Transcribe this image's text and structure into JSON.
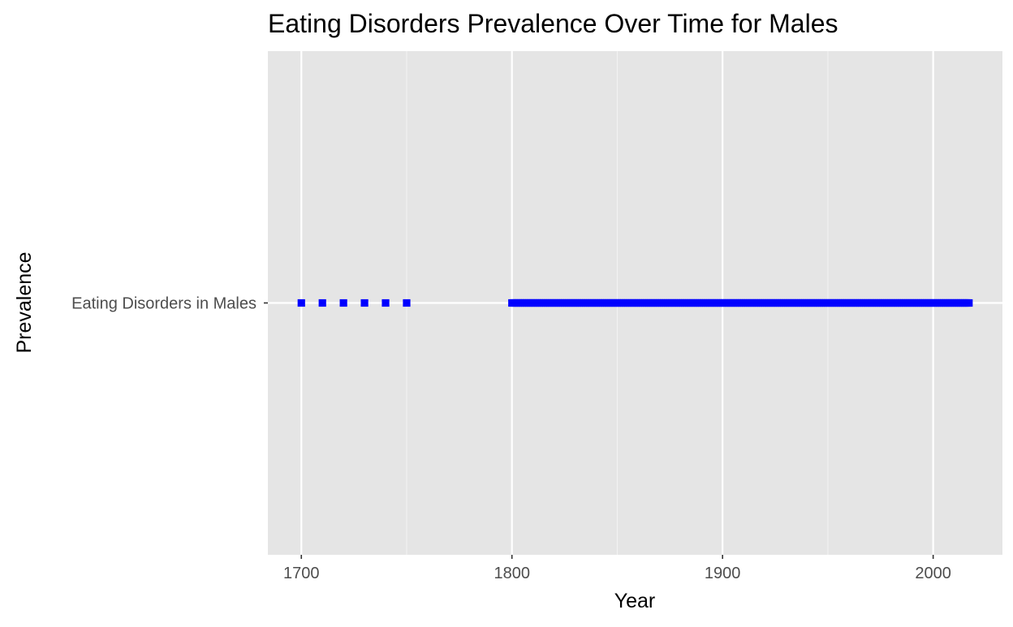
{
  "chart_data": {
    "type": "scatter",
    "title": "Eating Disorders Prevalence Over Time for Males",
    "xlabel": "Year",
    "ylabel": "Prevalence",
    "xlim": [
      1684.1,
      2032.9
    ],
    "x_major_ticks": [
      1700,
      1800,
      1900,
      2000
    ],
    "x_minor_ticks": [
      1750,
      1850,
      1950
    ],
    "x_tick_labels": [
      "1700",
      "1800",
      "1900",
      "2000"
    ],
    "categories": [
      "Eating Disorders in Males"
    ],
    "grid": true,
    "legend": "none",
    "series": [
      {
        "category": "Eating Disorders in Males",
        "color": "#0000ff",
        "marker": "square",
        "x_segments": [
          {
            "from": 1700,
            "to": 1750,
            "step": 10
          },
          {
            "from": 1800,
            "to": 1950,
            "step": 1
          },
          {
            "from": 1950,
            "to": 2017,
            "step": 1
          }
        ]
      }
    ]
  },
  "colors": {
    "panel_background": "#e5e5e5",
    "grid_major": "#ffffff",
    "grid_minor": "#f2f2f2",
    "points": "#0000ff",
    "tick_text": "#4d4d4d",
    "title_text": "#000000"
  }
}
